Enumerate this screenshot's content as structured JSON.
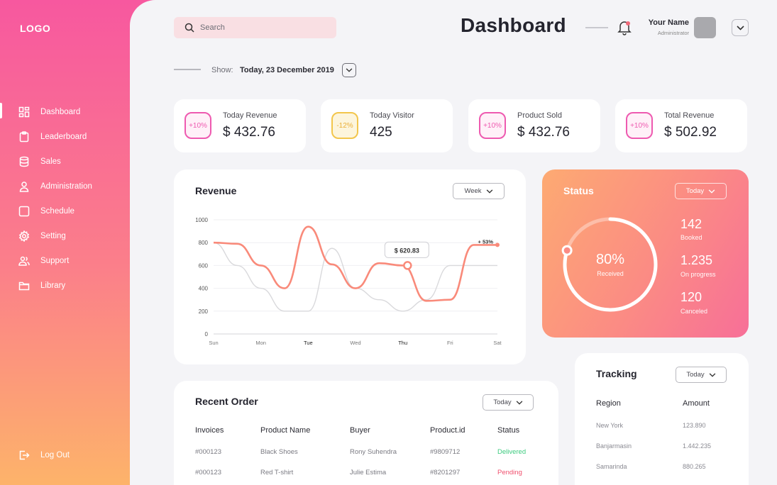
{
  "sidebar": {
    "logo": "LOGO",
    "items": [
      {
        "label": "Dashboard",
        "icon": "dashboard-icon"
      },
      {
        "label": "Leaderboard",
        "icon": "clipboard-icon"
      },
      {
        "label": "Sales",
        "icon": "database-icon"
      },
      {
        "label": "Administration",
        "icon": "user-icon"
      },
      {
        "label": "Schedule",
        "icon": "square-icon"
      },
      {
        "label": "Setting",
        "icon": "gear-icon"
      },
      {
        "label": "Support",
        "icon": "users-icon"
      },
      {
        "label": "Library",
        "icon": "folder-icon"
      }
    ],
    "logout": "Log Out"
  },
  "header": {
    "search_placeholder": "Search",
    "title": "Dashboard",
    "user_name": "Your Name",
    "user_role": "Administrator"
  },
  "filter": {
    "label": "Show:",
    "date": "Today, 23 December 2019"
  },
  "stats": [
    {
      "badge": "+10%",
      "label": "Today Revenue",
      "value": "$ 432.76"
    },
    {
      "badge": "-12%",
      "label": "Today Visitor",
      "value": "425"
    },
    {
      "badge": "+10%",
      "label": "Product Sold",
      "value": "$ 432.76"
    },
    {
      "badge": "+10%",
      "label": "Total Revenue",
      "value": "$ 502.92"
    }
  ],
  "revenue": {
    "title": "Revenue",
    "dropdown": "Week",
    "tooltip": "$ 620.83",
    "end_label": "+ 53%"
  },
  "chart_data": {
    "type": "line",
    "categories": [
      "Sun",
      "Mon",
      "Tue",
      "Wed",
      "Thu",
      "Fri",
      "Sat"
    ],
    "x": [
      0,
      0.5,
      1,
      1.5,
      2,
      2.5,
      3,
      3.5,
      4,
      4.5,
      5,
      5.5,
      6
    ],
    "ylim": [
      0,
      1000
    ],
    "yticks": [
      0,
      200,
      400,
      600,
      800,
      1000
    ],
    "series": [
      {
        "color": "#f98a7a",
        "values": [
          800,
          790,
          600,
          400,
          940,
          610,
          400,
          620,
          600,
          290,
          300,
          780,
          780
        ]
      },
      {
        "color": "#d9d9dc",
        "values": [
          800,
          600,
          400,
          200,
          200,
          750,
          400,
          300,
          200,
          300,
          600,
          600,
          600
        ]
      }
    ],
    "tooltip_point": {
      "x": 4.1,
      "y": 600
    }
  },
  "status": {
    "title": "Status",
    "dropdown": "Today",
    "percent": "80%",
    "percent_label": "Received",
    "progress": 0.8,
    "items": [
      {
        "value": "142",
        "label": "Booked"
      },
      {
        "value": "1.235",
        "label": "On progress"
      },
      {
        "value": "120",
        "label": "Canceled"
      }
    ]
  },
  "orders": {
    "title": "Recent Order",
    "dropdown": "Today",
    "columns": [
      "Invoices",
      "Product Name",
      "Buyer",
      "Product.id",
      "Status"
    ],
    "rows": [
      {
        "invoice": "#000123",
        "product": "Black Shoes",
        "buyer": "Rony Suhendra",
        "pid": "#9809712",
        "status": "Delivered"
      },
      {
        "invoice": "#000123",
        "product": "Red T-shirt",
        "buyer": "Julie Estima",
        "pid": "#8201297",
        "status": "Pending"
      }
    ]
  },
  "tracking": {
    "title": "Tracking",
    "dropdown": "Today",
    "columns": [
      "Region",
      "Amount"
    ],
    "rows": [
      {
        "region": "New York",
        "amount": "123.890"
      },
      {
        "region": "Banjarmasin",
        "amount": "1.442.235"
      },
      {
        "region": "Samarinda",
        "amount": "880.265"
      }
    ]
  }
}
